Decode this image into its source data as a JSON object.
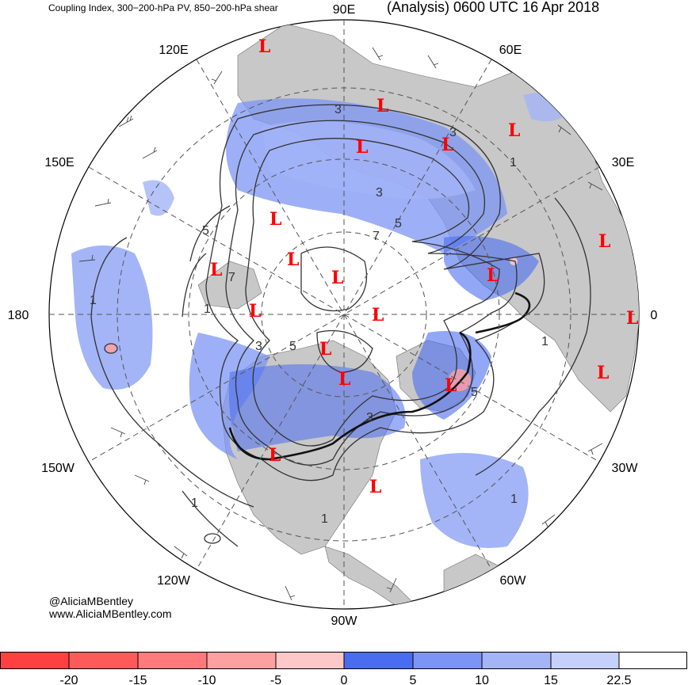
{
  "header": {
    "subtitle": "Coupling Index, 300−200-hPa PV, 850−200-hPa shear",
    "title": "(Analysis) 0600 UTC 16 Apr 2018"
  },
  "credits": {
    "handle": "@AliciaMBentley",
    "website": "www.AliciaMBentley.com"
  },
  "map": {
    "projection": "north-polar-stereographic",
    "longitude_labels": [
      "90E",
      "60E",
      "30E",
      "0",
      "30W",
      "60W",
      "90W",
      "120W",
      "150W",
      "180",
      "150E",
      "120E"
    ],
    "low_symbol": "L",
    "low_color": "#ff0000",
    "land_color": "#c8c8c8",
    "contour_labels": [
      "3",
      "3",
      "3",
      "1",
      "5",
      "7",
      "5",
      "1",
      "7",
      "3",
      "5",
      "3",
      "1",
      "5",
      "1",
      "1",
      "1",
      "1"
    ]
  },
  "colorbar": {
    "ticks": [
      "-20",
      "-15",
      "-10",
      "-5",
      "0",
      "5",
      "10",
      "15",
      "22.5"
    ],
    "colors": [
      "#ff4040",
      "#ff5a5a",
      "#ff7a7a",
      "#ffa0a0",
      "#ffc8c8",
      "#4a6cf0",
      "#7c95f4",
      "#a3b4f7",
      "#c5d1fa",
      "#ffffff"
    ]
  }
}
